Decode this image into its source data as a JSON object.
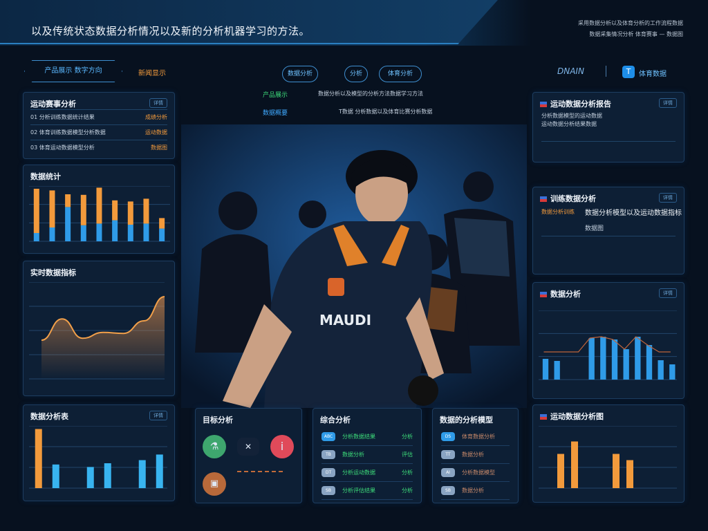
{
  "header": {
    "title": "以及传统状态数据分析情况以及新的分析机器学习的方法。",
    "info_line1": "采用数据分析以及体育分析的工作流程数据",
    "info_line2": "数据采集情况分析 体育赛事 — 数据图"
  },
  "nav": {
    "primary_button": "产品展示 数字方向",
    "orange_link": "新闻显示",
    "center_buttons": [
      "数据分析",
      "分析",
      "体育分析"
    ],
    "brand": "DNAIN",
    "brand_logo_text": "体育数据"
  },
  "intro": [
    {
      "label": "产品展示",
      "text": "数据分析以及模型的分析方法数据学习方法",
      "color": "#3ddc7a"
    },
    {
      "label": "数据概要",
      "text": "T数据 分析数据以及体育比赛分析数据",
      "color": "#3fa9ff"
    }
  ],
  "left": {
    "list_panel": {
      "title": "运动赛事分析",
      "tag": "详情",
      "rows": [
        {
          "text": "01 分析训练数据统计结果",
          "value": "成绩分析"
        },
        {
          "text": "02 体育训练数据模型分析数据",
          "value": "运动数据"
        },
        {
          "text": "03 体育运动数据模型分析",
          "value": "数据图"
        }
      ]
    },
    "bar_panel": {
      "title": "数据统计"
    },
    "area_panel": {
      "title": "实时数据指标"
    },
    "bar2_panel": {
      "title": "数据分析表",
      "tag": "详情"
    }
  },
  "bottom": {
    "goals": {
      "title": "目标分析"
    },
    "summary": {
      "title": "综合分析",
      "rows": [
        {
          "icon": "ABC",
          "text": "分析数据结果",
          "value": "分析"
        },
        {
          "icon": "TB",
          "text": "数据分析",
          "value": "评估"
        },
        {
          "icon": "DT",
          "text": "分析运动数据",
          "value": "分析"
        },
        {
          "icon": "SB",
          "text": "分析评估结果",
          "value": "分析"
        }
      ]
    },
    "model": {
      "title": "数据的分析模型",
      "rows": [
        {
          "icon": "DS",
          "text": "体育数据分析"
        },
        {
          "icon": "TT",
          "text": "数据分析"
        },
        {
          "icon": "AI",
          "text": "分析数据模型"
        },
        {
          "icon": "SB",
          "text": "数据分析"
        }
      ]
    }
  },
  "right": {
    "p1": {
      "title": "运动数据分析报告",
      "tag": "详情",
      "lines": [
        "分析数据模型的运动数据",
        "运动数据分析结果数据"
      ]
    },
    "p2": {
      "title": "训练数据分析",
      "tag": "详情",
      "sub": "数据分析训练",
      "big": "数据分析模型以及运动数据指标",
      "big2": "数据图"
    },
    "p3": {
      "title": "数据分析",
      "tag": "详情"
    },
    "p4": {
      "title": "运动数据分析图"
    }
  },
  "colors": {
    "orange": "#f29a3c",
    "blue": "#2f9be8",
    "bg": "#07111f"
  },
  "chart_data": [
    {
      "type": "bar",
      "stacked": true,
      "values_top": [
        80,
        67,
        23,
        55,
        65,
        36,
        42,
        45,
        19
      ],
      "values_bottom": [
        15,
        25,
        62,
        29,
        32,
        38,
        30,
        32,
        23
      ]
    },
    {
      "type": "area",
      "values": [
        40,
        62,
        42,
        48,
        47,
        60,
        85
      ]
    },
    {
      "type": "bar",
      "values": [
        95,
        38,
        0,
        34,
        40,
        0,
        45,
        54
      ],
      "highlight_first": true
    },
    {
      "type": "bar",
      "line": true,
      "values": [
        30,
        27,
        0,
        0,
        60,
        62,
        58,
        44,
        62,
        50,
        28,
        22
      ]
    },
    {
      "type": "bar",
      "values": [
        0,
        55,
        75,
        0,
        0,
        55,
        45,
        0,
        0,
        0
      ]
    }
  ]
}
